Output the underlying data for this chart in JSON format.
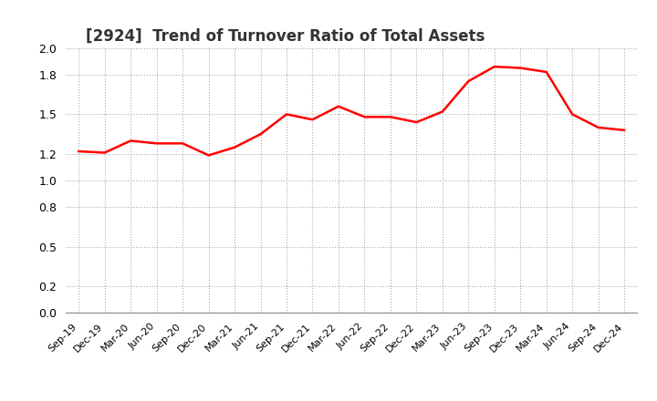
{
  "title": "[2924]  Trend of Turnover Ratio of Total Assets",
  "title_fontsize": 12,
  "title_color": "#333333",
  "line_color": "#FF0000",
  "line_width": 1.8,
  "background_color": "#FFFFFF",
  "grid_color": "#AAAAAA",
  "ylim": [
    0.0,
    2.0
  ],
  "yticks": [
    0.0,
    0.2,
    0.5,
    0.8,
    1.0,
    1.2,
    1.5,
    1.8,
    2.0
  ],
  "labels": [
    "Sep-19",
    "Dec-19",
    "Mar-20",
    "Jun-20",
    "Sep-20",
    "Dec-20",
    "Mar-21",
    "Jun-21",
    "Sep-21",
    "Dec-21",
    "Mar-22",
    "Jun-22",
    "Sep-22",
    "Dec-22",
    "Mar-23",
    "Jun-23",
    "Sep-23",
    "Dec-23",
    "Mar-24",
    "Jun-24",
    "Sep-24",
    "Dec-24"
  ],
  "values": [
    1.22,
    1.21,
    1.3,
    1.28,
    1.28,
    1.19,
    1.25,
    1.35,
    1.5,
    1.46,
    1.56,
    1.48,
    1.48,
    1.44,
    1.52,
    1.75,
    1.86,
    1.85,
    1.82,
    1.5,
    1.4,
    1.38
  ]
}
